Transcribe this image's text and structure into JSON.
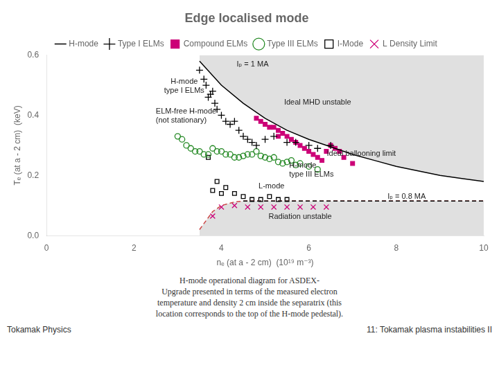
{
  "chart_data": {
    "type": "scatter",
    "title": "Edge localised mode",
    "xlabel": "nₑ (at a - 2 cm)  (10¹⁹ m⁻³)",
    "ylabel": "Tₑ (at a - 2 cm)  (keV)",
    "xlim": [
      0,
      10
    ],
    "ylim": [
      0,
      0.6
    ],
    "xticks": [
      0,
      2,
      4,
      6,
      8,
      10
    ],
    "yticks": [
      {
        "value": 0,
        "label": "0.0"
      },
      0.2,
      0.4,
      0.6
    ],
    "grid": false,
    "legend": "top",
    "series": [
      {
        "name": "H-mode",
        "type": "area",
        "color": "black",
        "line_style": "solid",
        "x": [
          3.5,
          4.0,
          4.5,
          5.0,
          5.5,
          6.0,
          6.5,
          7.0,
          7.5,
          8.0,
          8.5,
          9.0,
          9.5,
          10.0
        ],
        "values": [
          0.58,
          0.5,
          0.44,
          0.39,
          0.35,
          0.32,
          0.295,
          0.27,
          0.25,
          0.23,
          0.215,
          0.2,
          0.19,
          0.18
        ]
      },
      {
        "type": "line",
        "color": "black",
        "line_style": "dashed",
        "x": [
          4.5,
          10.0
        ],
        "values": [
          0.115,
          0.115
        ]
      },
      {
        "type": "area",
        "color": "#cc4444",
        "line_style": "dashed",
        "x": [
          3.5,
          3.8,
          4.0,
          4.3,
          4.5,
          5.0,
          6.0,
          7.0,
          8.0,
          10.0
        ],
        "values": [
          0.02,
          0.08,
          0.1,
          0.112,
          0.115,
          0.115,
          0.115,
          0.115,
          0.115,
          0.115
        ]
      },
      {
        "name": "Type I ELMs",
        "type": "scatter",
        "color": "black",
        "marker": "plus",
        "x": [
          3.5,
          3.6,
          3.65,
          3.7,
          3.75,
          3.8,
          3.85,
          3.9,
          4.0,
          4.1,
          4.2,
          4.3,
          4.4,
          4.5,
          4.6,
          4.7,
          4.8,
          5.0,
          5.2,
          5.5,
          5.7,
          6.0,
          6.2,
          6.5
        ],
        "values": [
          0.55,
          0.52,
          0.5,
          0.46,
          0.47,
          0.48,
          0.44,
          0.42,
          0.4,
          0.38,
          0.37,
          0.38,
          0.35,
          0.33,
          0.32,
          0.31,
          0.3,
          0.32,
          0.33,
          0.31,
          0.31,
          0.3,
          0.29,
          0.3
        ]
      },
      {
        "name": "Compound ELMs",
        "type": "scatter",
        "color": "#cc0077",
        "marker": "square",
        "x": [
          4.8,
          4.9,
          5.0,
          5.1,
          5.2,
          5.3,
          5.3,
          5.4,
          5.5,
          5.6,
          5.7,
          5.8,
          5.9,
          6.0,
          6.1,
          6.2,
          6.3,
          6.4,
          6.5,
          6.6,
          6.7,
          6.8,
          7.0
        ],
        "values": [
          0.39,
          0.38,
          0.37,
          0.36,
          0.36,
          0.35,
          0.33,
          0.34,
          0.33,
          0.32,
          0.31,
          0.3,
          0.29,
          0.28,
          0.27,
          0.26,
          0.25,
          0.28,
          0.3,
          0.29,
          0.28,
          0.26,
          0.24
        ]
      },
      {
        "name": "Type III ELMs",
        "type": "scatter",
        "color": "#228822",
        "marker": "circle-open",
        "x": [
          3.0,
          3.1,
          3.2,
          3.3,
          3.4,
          3.5,
          3.6,
          3.7,
          3.8,
          3.9,
          4.0,
          4.1,
          4.2,
          4.3,
          4.4,
          4.5,
          4.6,
          4.7,
          4.8,
          4.9,
          5.0,
          5.1,
          5.2,
          5.3,
          5.4,
          5.5,
          5.6,
          5.7,
          5.8,
          6.0,
          6.2
        ],
        "values": [
          0.33,
          0.32,
          0.3,
          0.29,
          0.28,
          0.28,
          0.27,
          0.27,
          0.29,
          0.28,
          0.28,
          0.27,
          0.27,
          0.26,
          0.26,
          0.265,
          0.27,
          0.27,
          0.28,
          0.265,
          0.26,
          0.255,
          0.26,
          0.245,
          0.24,
          0.245,
          0.25,
          0.235,
          0.24,
          0.23,
          0.22
        ]
      },
      {
        "name": "I-Mode",
        "type": "scatter",
        "color": "black",
        "marker": "square-open",
        "x": [
          3.7,
          3.8,
          3.9,
          4.0,
          4.1,
          4.3,
          4.5,
          4.7,
          4.9,
          5.1,
          5.3,
          5.5
        ],
        "values": [
          0.26,
          0.15,
          0.18,
          0.14,
          0.16,
          0.14,
          0.13,
          0.12,
          0.12,
          0.13,
          0.12,
          0.12
        ]
      },
      {
        "name": "L Density Limit",
        "type": "scatter",
        "color": "#cc0077",
        "marker": "x",
        "x": [
          3.8,
          4.0,
          4.3,
          4.6,
          4.9,
          5.2,
          5.5,
          5.8,
          6.1,
          6.4
        ],
        "values": [
          0.065,
          0.095,
          0.1,
          0.095,
          0.095,
          0.095,
          0.095,
          0.095,
          0.095,
          0.095
        ]
      }
    ],
    "annotations": [
      {
        "text": "Iₚ = 1 MA",
        "x": 4.35,
        "y": 0.563,
        "align": "left"
      },
      {
        "text": "Iₚ = 0.8 MA",
        "x": 7.8,
        "y": 0.122,
        "align": "left"
      },
      {
        "text": "H-mode\ntype I ELMs",
        "x": 3.15,
        "y": 0.505,
        "align": "center"
      },
      {
        "text": "ELM-free H-mode\n(not stationary)",
        "x": 2.5,
        "y": 0.405,
        "align": "left"
      },
      {
        "text": "Ideal MHD unstable",
        "x": 6.2,
        "y": 0.435,
        "align": "center"
      },
      {
        "text": "H-mode\ntype III ELMs",
        "x": 5.55,
        "y": 0.225,
        "align": "left"
      },
      {
        "text": "L-mode",
        "x": 4.85,
        "y": 0.158,
        "align": "left"
      },
      {
        "text": "Radiation unstable",
        "x": 5.8,
        "y": 0.055,
        "align": "center"
      },
      {
        "text": "Ideal ballooning limit",
        "x": 7.2,
        "y": 0.265,
        "align": "center"
      }
    ],
    "caption": [
      "H-mode operational diagram for ASDEX-",
      "Upgrade presented in terms of the measured electron",
      "temperature and density 2 cm inside the separatrix (this",
      "location corresponds to the top of the H-mode pedestal)."
    ],
    "footer_left": "Tokamak Physics",
    "footer_right": "11: Tokamak plasma instabilities II"
  }
}
